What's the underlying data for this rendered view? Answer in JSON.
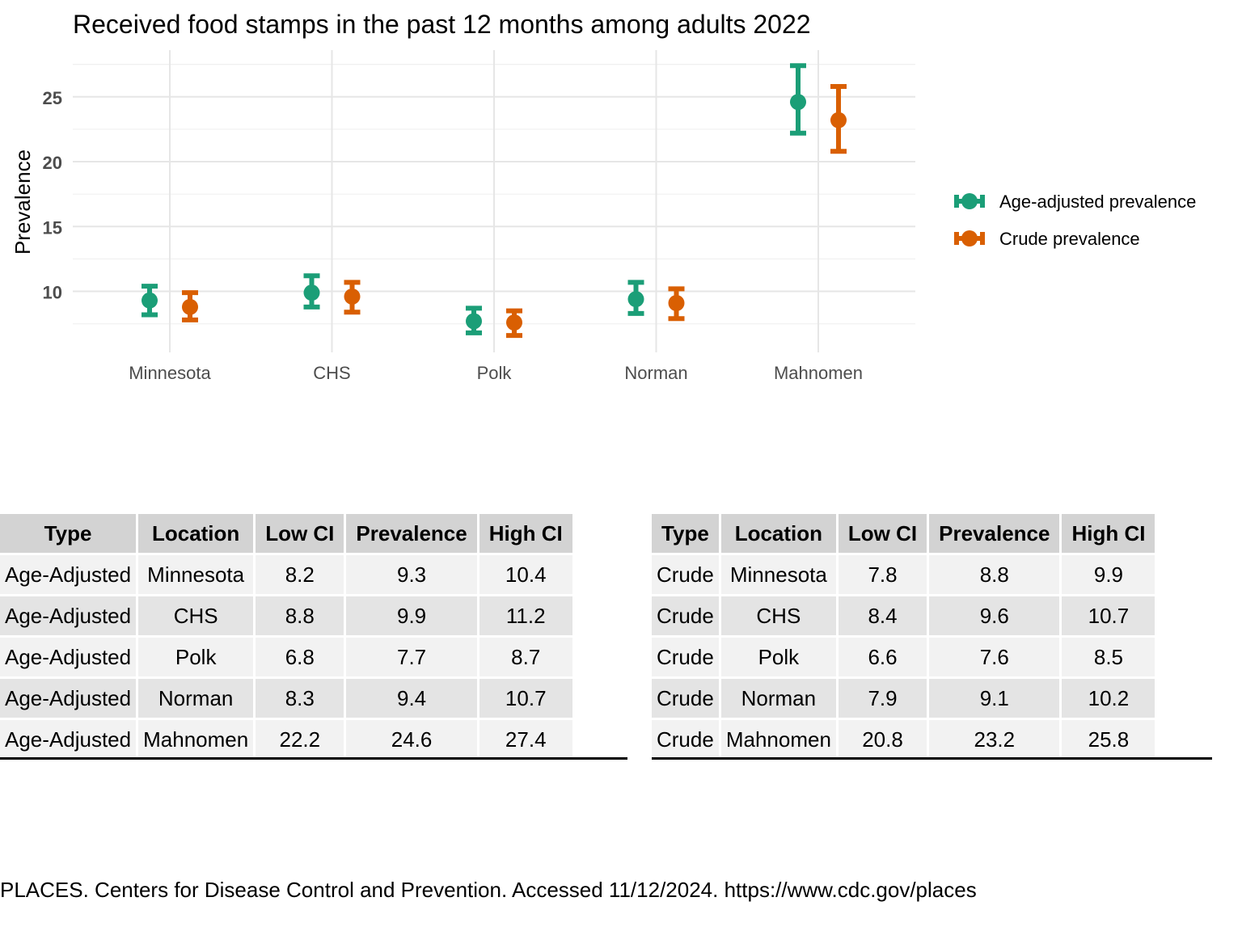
{
  "colors": {
    "age_adjusted": "#1b9e77",
    "crude": "#d95f02"
  },
  "chart_data": {
    "type": "scatter",
    "title": "Received food stamps in the past 12 months among adults 2022",
    "xlabel": "",
    "ylabel": "Prevalence",
    "categories": [
      "Minnesota",
      "CHS",
      "Polk",
      "Norman",
      "Mahnomen"
    ],
    "yticks": [
      10,
      15,
      20,
      25
    ],
    "ylim": [
      5.3,
      28.6
    ],
    "grid": true,
    "legend_position": "right",
    "series": [
      {
        "name": "Age-adjusted prevalence",
        "color": "#1b9e77",
        "values": [
          9.3,
          9.9,
          7.7,
          9.4,
          24.6
        ],
        "low": [
          8.2,
          8.8,
          6.8,
          8.3,
          22.2
        ],
        "high": [
          10.4,
          11.2,
          8.7,
          10.7,
          27.4
        ]
      },
      {
        "name": "Crude prevalence",
        "color": "#d95f02",
        "values": [
          8.8,
          9.6,
          7.6,
          9.1,
          23.2
        ],
        "low": [
          7.8,
          8.4,
          6.6,
          7.9,
          20.8
        ],
        "high": [
          9.9,
          10.7,
          8.5,
          10.2,
          25.8
        ]
      }
    ]
  },
  "tables": {
    "headers": [
      "Type",
      "Location",
      "Low CI",
      "Prevalence",
      "High CI"
    ],
    "age_adjusted": [
      [
        "Age-Adjusted",
        "Minnesota",
        "8.2",
        "9.3",
        "10.4"
      ],
      [
        "Age-Adjusted",
        "CHS",
        "8.8",
        "9.9",
        "11.2"
      ],
      [
        "Age-Adjusted",
        "Polk",
        "6.8",
        "7.7",
        "8.7"
      ],
      [
        "Age-Adjusted",
        "Norman",
        "8.3",
        "9.4",
        "10.7"
      ],
      [
        "Age-Adjusted",
        "Mahnomen",
        "22.2",
        "24.6",
        "27.4"
      ]
    ],
    "crude": [
      [
        "Crude",
        "Minnesota",
        "7.8",
        "8.8",
        "9.9"
      ],
      [
        "Crude",
        "CHS",
        "8.4",
        "9.6",
        "10.7"
      ],
      [
        "Crude",
        "Polk",
        "6.6",
        "7.6",
        "8.5"
      ],
      [
        "Crude",
        "Norman",
        "7.9",
        "9.1",
        "10.2"
      ],
      [
        "Crude",
        "Mahnomen",
        "20.8",
        "23.2",
        "25.8"
      ]
    ]
  },
  "source": "PLACES. Centers for Disease Control and Prevention. Accessed 11/12/2024. https://www.cdc.gov/places"
}
